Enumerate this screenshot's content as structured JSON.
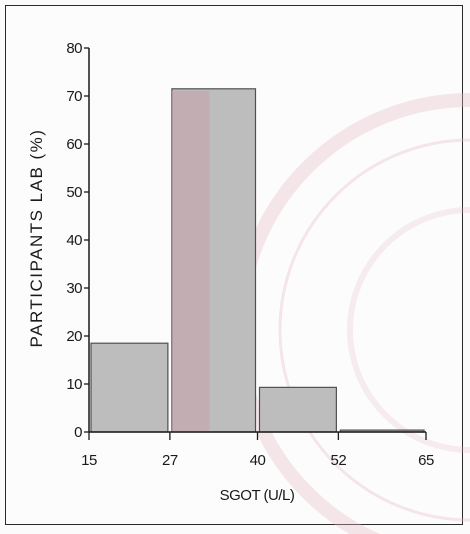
{
  "chart_data": {
    "type": "bar",
    "bins": [
      {
        "from": 15,
        "to": 27,
        "value": 18.5
      },
      {
        "from": 27,
        "to": 40,
        "value": 71.5
      },
      {
        "from": 40,
        "to": 52,
        "value": 9.3
      },
      {
        "from": 52,
        "to": 65,
        "value": 0.4
      }
    ],
    "x_ticks": [
      15,
      27,
      40,
      52,
      65
    ],
    "y_ticks": [
      0,
      10,
      20,
      30,
      40,
      50,
      60,
      70,
      80
    ],
    "xlabel": "SGOT (U/L)",
    "ylabel": "PARTICIPANTS LAB (%)",
    "title": "",
    "xlim": [
      15,
      65
    ],
    "ylim": [
      0,
      80
    ],
    "grid": false,
    "colors": {
      "bar_fill": "#bdbdbd",
      "bar_edge": "#505050",
      "highlight_fill": "#c7a1ab",
      "watermark": "#e3b9c6",
      "axis": "#1a1a1a"
    }
  }
}
